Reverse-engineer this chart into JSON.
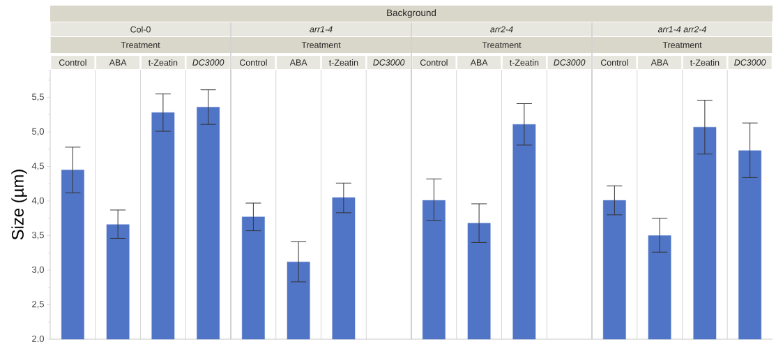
{
  "chart_data": {
    "type": "bar",
    "ylabel": "Size (µm)",
    "categories": [
      "Control",
      "ABA",
      "t-Zeatin",
      "DC3000",
      "Control",
      "ABA",
      "t-Zeatin",
      "DC3000",
      "Control",
      "ABA",
      "t-Zeatin",
      "DC3000",
      "Control",
      "ABA",
      "t-Zeatin",
      "DC3000"
    ],
    "values": [
      4.45,
      3.66,
      5.28,
      5.36,
      3.77,
      3.12,
      4.05,
      null,
      4.01,
      3.68,
      5.11,
      null,
      4.01,
      3.5,
      5.07,
      4.73
    ],
    "errors": [
      [
        4.12,
        4.78
      ],
      [
        3.46,
        3.87
      ],
      [
        5.01,
        5.55
      ],
      [
        5.11,
        5.61
      ],
      [
        3.57,
        3.97
      ],
      [
        2.83,
        3.41
      ],
      [
        3.83,
        4.26
      ],
      null,
      [
        3.72,
        4.32
      ],
      [
        3.4,
        3.96
      ],
      [
        4.81,
        5.41
      ],
      null,
      [
        3.8,
        4.22
      ],
      [
        3.26,
        3.75
      ],
      [
        4.68,
        5.46
      ],
      [
        4.34,
        5.13
      ]
    ],
    "color": "#5175c6",
    "ylim": [
      2.0,
      5.9
    ],
    "yticks": [
      {
        "value": 2.0,
        "label": "2,0"
      },
      {
        "value": 2.25,
        "label": null
      },
      {
        "value": 2.5,
        "label": "2,5"
      },
      {
        "value": 2.75,
        "label": null
      },
      {
        "value": 3.0,
        "label": "3,0"
      },
      {
        "value": 3.25,
        "label": null
      },
      {
        "value": 3.5,
        "label": "3,5"
      },
      {
        "value": 3.75,
        "label": null
      },
      {
        "value": 4.0,
        "label": "4,0"
      },
      {
        "value": 4.25,
        "label": null
      },
      {
        "value": 4.5,
        "label": "4,5"
      },
      {
        "value": 4.75,
        "label": null
      },
      {
        "value": 5.0,
        "label": "5,0"
      },
      {
        "value": 5.25,
        "label": null
      },
      {
        "value": 5.5,
        "label": "5,5"
      },
      {
        "value": 5.75,
        "label": null
      }
    ],
    "grid": "x",
    "annotations": [
      "Background",
      "Col-0",
      "arr1-4",
      "arr2-4",
      "arr1-4 arr2-4",
      "Treatment",
      "Treatment",
      "Treatment",
      "Treatment"
    ]
  }
}
